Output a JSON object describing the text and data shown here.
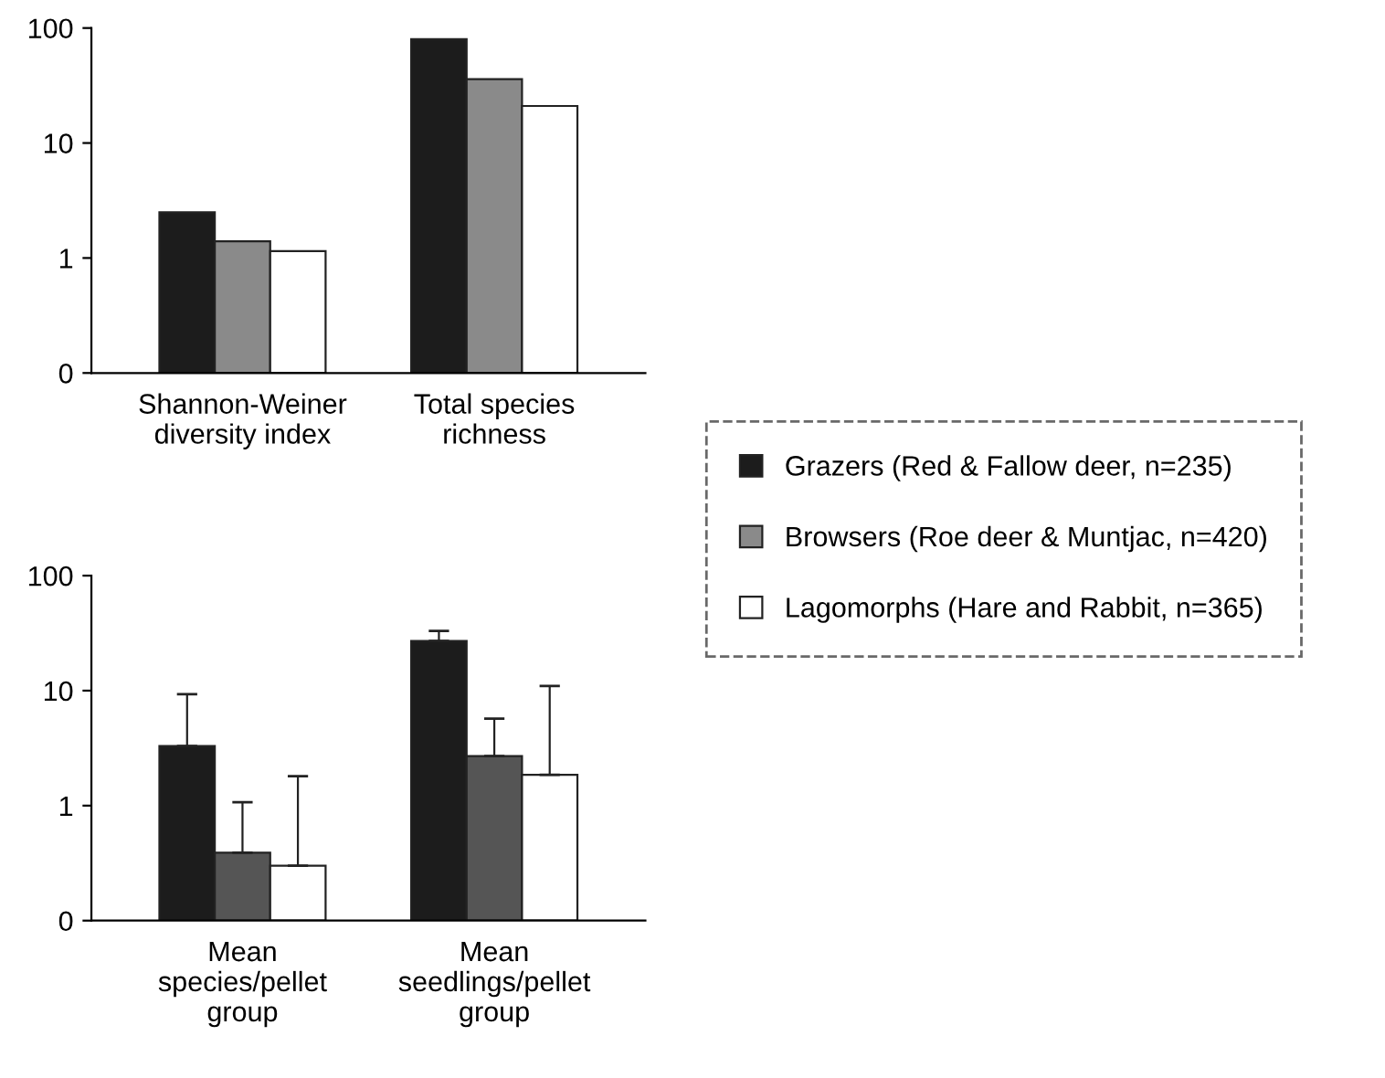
{
  "chart_data": [
    {
      "type": "bar",
      "categories": [
        "Shannon-Weiner\ndiversity index",
        "Total species\nrichness"
      ],
      "log": "y",
      "ylim": [
        0.1,
        100
      ],
      "yticks": [
        {
          "value": 0.1,
          "label": "0"
        },
        1,
        10,
        100
      ],
      "legend": "right",
      "grid": false,
      "series": [
        {
          "name": "Grazers (Red & Fallow deer, n=235)",
          "color": "#1c1c1c",
          "values": [
            2.5,
            80
          ]
        },
        {
          "name": "Browsers (Roe deer & Muntjac, n=420)",
          "color": "#8a8a8a",
          "values": [
            1.4,
            36
          ]
        },
        {
          "name": "Lagomorphs (Hare and Rabbit, n=365)",
          "color": "#ffffff",
          "values": [
            1.15,
            21
          ]
        }
      ]
    },
    {
      "type": "bar",
      "categories": [
        "Mean\nspecies/pellet\ngroup",
        "Mean\nseedlings/pellet\ngroup"
      ],
      "log": "y",
      "ylim": [
        0.1,
        100
      ],
      "yticks": [
        {
          "value": 0.1,
          "label": "0"
        },
        1,
        10,
        100
      ],
      "grid": false,
      "series": [
        {
          "color": "#1c1c1c",
          "values": [
            3.3,
            27
          ],
          "errors": [
            [
              3.3,
              9.3
            ],
            [
              27,
              33
            ]
          ]
        },
        {
          "color": "#555555",
          "values": [
            0.39,
            2.7
          ],
          "errors": [
            [
              0.39,
              1.07
            ],
            [
              2.7,
              5.7
            ]
          ]
        },
        {
          "color": "#ffffff",
          "values": [
            0.3,
            1.85
          ],
          "errors": [
            [
              0.3,
              1.8
            ],
            [
              1.85,
              11
            ]
          ]
        }
      ]
    }
  ]
}
